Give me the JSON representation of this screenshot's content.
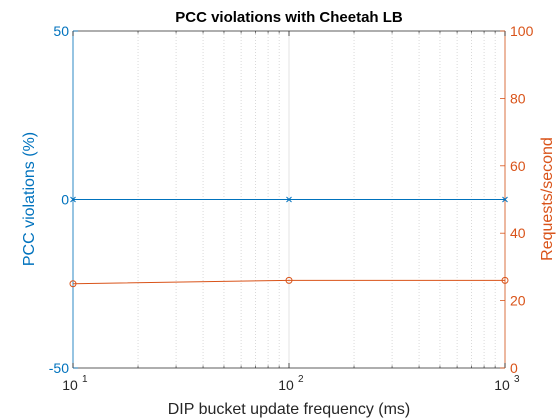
{
  "chart_data": {
    "type": "line",
    "title": "PCC violations with Cheetah LB",
    "xlabel": "DIP bucket update frequency (ms)",
    "x_scale": "log",
    "xlim": [
      10,
      1000
    ],
    "x_ticks": [
      {
        "base": "10",
        "exp": "1",
        "value": 10
      },
      {
        "base": "10",
        "exp": "2",
        "value": 100
      },
      {
        "base": "10",
        "exp": "3",
        "value": 1000
      }
    ],
    "x_minor_grid": true,
    "y_left": {
      "label": "PCC violations (%)",
      "lim": [
        -50,
        50
      ],
      "ticks": [
        "-50",
        "0",
        "50"
      ],
      "color": "#0072BD"
    },
    "y_right": {
      "label": "Requests/second",
      "lim": [
        0,
        100
      ],
      "ticks": [
        "0",
        "20",
        "40",
        "60",
        "80",
        "100"
      ],
      "color": "#D95319"
    },
    "series": [
      {
        "axis": "left",
        "marker": "x",
        "color": "#0072BD",
        "x": [
          10,
          100,
          1000
        ],
        "y": [
          0,
          0,
          0
        ]
      },
      {
        "axis": "right",
        "marker": "o",
        "color": "#D95319",
        "x": [
          10,
          100,
          1000
        ],
        "y": [
          25,
          26,
          26
        ]
      }
    ]
  }
}
